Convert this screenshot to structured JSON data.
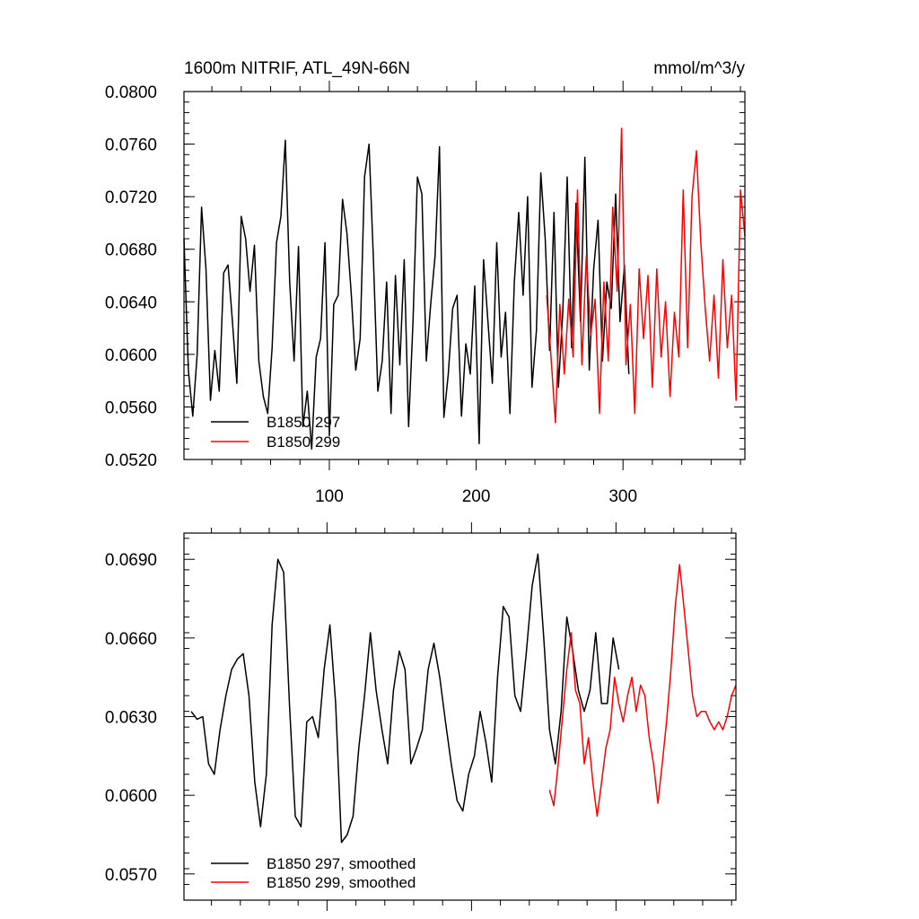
{
  "chart_data": [
    {
      "type": "line",
      "title_left": "1600m NITRIF, ATL_49N-66N",
      "title_right": "mmol/m^3/y",
      "xlabel": "",
      "ylabel": "",
      "xlim": [
        1,
        383
      ],
      "ylim": [
        0.052,
        0.08
      ],
      "xticks": [
        100,
        200,
        300
      ],
      "xtick_labels": [
        "100",
        "200",
        "300"
      ],
      "yticks": [
        0.052,
        0.056,
        0.06,
        0.064,
        0.068,
        0.072,
        0.076,
        0.08
      ],
      "ytick_labels": [
        "0.0520",
        "0.0560",
        "0.0600",
        "0.0640",
        "0.0680",
        "0.0720",
        "0.0760",
        "0.0800"
      ],
      "legend": {
        "position": "bottom-left",
        "entries": [
          "B1850 297",
          "B1850 299"
        ]
      },
      "series": [
        {
          "name": "B1850 297",
          "color": "#000000",
          "x": [
            1,
            4,
            7,
            10,
            13,
            16,
            19,
            22,
            25,
            28,
            31,
            34,
            37,
            40,
            43,
            46,
            49,
            52,
            55,
            58,
            61,
            64,
            67,
            70,
            73,
            76,
            79,
            82,
            85,
            88,
            91,
            94,
            97,
            100,
            103,
            106,
            109,
            112,
            115,
            118,
            121,
            124,
            127,
            130,
            133,
            136,
            139,
            142,
            145,
            148,
            151,
            154,
            157,
            160,
            163,
            166,
            169,
            172,
            175,
            178,
            181,
            184,
            187,
            190,
            193,
            196,
            199,
            202,
            205,
            208,
            211,
            214,
            217,
            220,
            223,
            226,
            229,
            232,
            235,
            238,
            241,
            244,
            247,
            250,
            253,
            256,
            259,
            262,
            265,
            268,
            271,
            274,
            277,
            280,
            283,
            286,
            289,
            292,
            295,
            298,
            301,
            304
          ],
          "y": [
            0.0688,
            0.0588,
            0.0553,
            0.06,
            0.0712,
            0.0665,
            0.0565,
            0.0603,
            0.0572,
            0.0662,
            0.0668,
            0.0625,
            0.0578,
            0.0705,
            0.0688,
            0.0648,
            0.0683,
            0.0595,
            0.0568,
            0.0555,
            0.0605,
            0.0685,
            0.0705,
            0.0763,
            0.0655,
            0.0595,
            0.0682,
            0.0545,
            0.0572,
            0.0528,
            0.0598,
            0.0612,
            0.0685,
            0.0538,
            0.0638,
            0.0645,
            0.0718,
            0.0692,
            0.0645,
            0.0588,
            0.0612,
            0.0735,
            0.076,
            0.0672,
            0.0572,
            0.0595,
            0.0655,
            0.0555,
            0.066,
            0.0592,
            0.0672,
            0.0545,
            0.0625,
            0.0735,
            0.0722,
            0.0595,
            0.0638,
            0.0675,
            0.0758,
            0.0552,
            0.0585,
            0.0635,
            0.0645,
            0.0553,
            0.0608,
            0.0585,
            0.0652,
            0.0532,
            0.0672,
            0.0625,
            0.0578,
            0.0685,
            0.0598,
            0.0632,
            0.0555,
            0.0655,
            0.0708,
            0.0645,
            0.072,
            0.0575,
            0.0618,
            0.0738,
            0.0688,
            0.0603,
            0.0708,
            0.0575,
            0.0632,
            0.0735,
            0.0605,
            0.0715,
            0.0625,
            0.075,
            0.0588,
            0.0665,
            0.0702,
            0.0595,
            0.0655,
            0.0635,
            0.0722,
            0.0625,
            0.0668,
            0.0585
          ]
        },
        {
          "name": "B1850 299",
          "color": "#ff0000",
          "x": [
            248,
            251,
            254,
            257,
            260,
            263,
            266,
            269,
            272,
            275,
            278,
            281,
            284,
            287,
            290,
            293,
            296,
            299,
            302,
            305,
            308,
            311,
            314,
            317,
            320,
            323,
            326,
            329,
            332,
            335,
            338,
            341,
            344,
            347,
            350,
            353,
            356,
            359,
            362,
            365,
            368,
            371,
            374,
            377,
            380,
            383
          ],
          "y": [
            0.0645,
            0.0598,
            0.0548,
            0.0638,
            0.0585,
            0.0642,
            0.0598,
            0.0725,
            0.0592,
            0.0675,
            0.0615,
            0.0642,
            0.0555,
            0.0655,
            0.0595,
            0.0712,
            0.0648,
            0.0772,
            0.0592,
            0.0638,
            0.0555,
            0.0665,
            0.0612,
            0.066,
            0.0575,
            0.0665,
            0.0598,
            0.064,
            0.0568,
            0.0632,
            0.0598,
            0.0725,
            0.0605,
            0.072,
            0.0755,
            0.0685,
            0.0635,
            0.0595,
            0.0645,
            0.0582,
            0.0672,
            0.0605,
            0.0645,
            0.0565,
            0.0725,
            0.069
          ]
        }
      ]
    },
    {
      "type": "line",
      "title_left": "",
      "title_right": "",
      "xlabel": "",
      "ylabel": "",
      "xlim": [
        1,
        383
      ],
      "ylim": [
        0.056,
        0.07
      ],
      "xticks": [
        100,
        200,
        300
      ],
      "xtick_labels": [],
      "yticks": [
        0.057,
        0.06,
        0.063,
        0.066,
        0.069
      ],
      "ytick_labels": [
        "0.0570",
        "0.0600",
        "0.0630",
        "0.0660",
        "0.0690"
      ],
      "legend": {
        "position": "bottom-left",
        "entries": [
          "B1850 297, smoothed",
          "B1850 299, smoothed"
        ]
      },
      "series": [
        {
          "name": "B1850 297, smoothed",
          "color": "#000000",
          "x": [
            6,
            10,
            14,
            18,
            22,
            26,
            30,
            34,
            38,
            42,
            46,
            50,
            54,
            58,
            62,
            66,
            70,
            74,
            78,
            82,
            86,
            90,
            94,
            98,
            102,
            106,
            110,
            114,
            118,
            122,
            126,
            130,
            134,
            138,
            142,
            146,
            150,
            154,
            158,
            162,
            166,
            170,
            174,
            178,
            182,
            186,
            190,
            194,
            198,
            202,
            206,
            210,
            214,
            218,
            222,
            226,
            230,
            234,
            238,
            242,
            246,
            250,
            254,
            258,
            262,
            266,
            270,
            274,
            278,
            282,
            286,
            290,
            294,
            298,
            302
          ],
          "y": [
            0.0632,
            0.0629,
            0.063,
            0.0612,
            0.0608,
            0.0625,
            0.0638,
            0.0648,
            0.0652,
            0.0654,
            0.0638,
            0.0605,
            0.0588,
            0.0608,
            0.0665,
            0.069,
            0.0685,
            0.0635,
            0.0592,
            0.0588,
            0.0628,
            0.063,
            0.0622,
            0.0648,
            0.0665,
            0.0635,
            0.0582,
            0.0585,
            0.0592,
            0.0618,
            0.0638,
            0.0662,
            0.064,
            0.0625,
            0.0612,
            0.064,
            0.0655,
            0.0648,
            0.0612,
            0.0618,
            0.0625,
            0.0648,
            0.0658,
            0.0645,
            0.0628,
            0.0612,
            0.0598,
            0.0594,
            0.0608,
            0.0615,
            0.0632,
            0.062,
            0.0605,
            0.0645,
            0.0672,
            0.0668,
            0.0638,
            0.0632,
            0.0655,
            0.068,
            0.0692,
            0.066,
            0.0625,
            0.0612,
            0.0632,
            0.0668,
            0.0655,
            0.064,
            0.0632,
            0.064,
            0.0662,
            0.0635,
            0.0635,
            0.066,
            0.0648
          ]
        },
        {
          "name": "B1850 299, smoothed",
          "color": "#ff0000",
          "x": [
            254,
            257,
            260,
            263,
            266,
            269,
            272,
            275,
            278,
            281,
            284,
            287,
            290,
            293,
            296,
            299,
            302,
            305,
            308,
            311,
            314,
            317,
            320,
            323,
            326,
            329,
            332,
            335,
            338,
            341,
            344,
            347,
            350,
            353,
            356,
            359,
            362,
            365,
            368,
            371,
            374,
            377,
            380,
            383
          ],
          "y": [
            0.0602,
            0.0596,
            0.0612,
            0.063,
            0.0648,
            0.0662,
            0.064,
            0.0635,
            0.0612,
            0.0622,
            0.0605,
            0.0592,
            0.0605,
            0.0618,
            0.0625,
            0.0645,
            0.0635,
            0.0628,
            0.0638,
            0.0645,
            0.0632,
            0.0642,
            0.0638,
            0.0622,
            0.0612,
            0.0597,
            0.0612,
            0.0628,
            0.0648,
            0.0672,
            0.0688,
            0.0672,
            0.0655,
            0.0638,
            0.063,
            0.0632,
            0.0632,
            0.0628,
            0.0625,
            0.0628,
            0.0625,
            0.063,
            0.0638,
            0.0642
          ]
        }
      ]
    }
  ]
}
